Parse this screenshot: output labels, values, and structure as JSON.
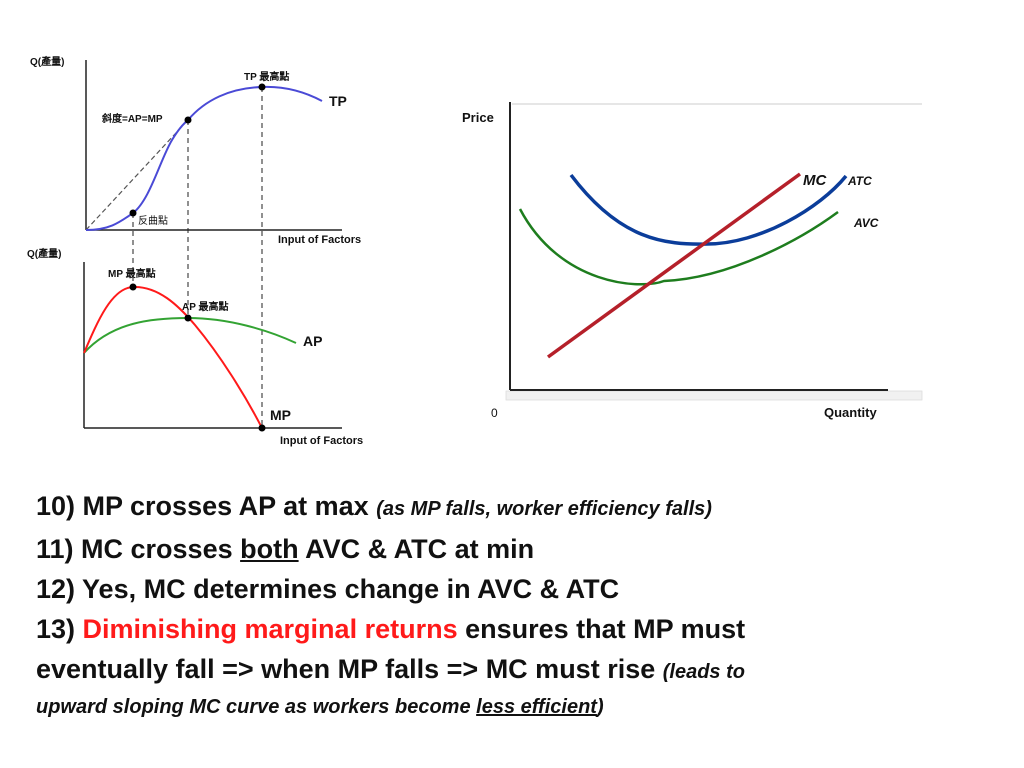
{
  "left_top": {
    "y_label": "Q(產量)",
    "x_label": "Input of Factors",
    "tp_label": "TP",
    "tp_max_label": "TP 最高點",
    "slope_label": "斜度=AP=MP",
    "inflection_label": "反曲點"
  },
  "left_bottom": {
    "y_label": "Q(產量)",
    "x_label": "Input of Factors",
    "mp_max_label": "MP 最高點",
    "ap_max_label": "AP 最高點",
    "ap_label": "AP",
    "mp_label": "MP"
  },
  "right": {
    "y_label": "Price",
    "x_label": "Quantity",
    "origin_label": "0",
    "mc_label": "MC",
    "atc_label": "ATC",
    "avc_label": "AVC"
  },
  "colors": {
    "tp": "#4a4ad6",
    "mp": "#ff1a1a",
    "ap": "#33a333",
    "mc": "#b5202a",
    "atc": "#0b3d9a",
    "avc": "#1e7d1e"
  },
  "notes": {
    "l1_main": "10) MP crosses AP at max",
    "l1_small": "(as MP falls, worker efficiency falls)",
    "l2_a": "11) MC crosses ",
    "l2_u": "both",
    "l2_b": " AVC & ATC at min",
    "l3": "12) Yes, MC determines change in AVC & ATC",
    "l4_a": "13) ",
    "l4_red": "Diminishing marginal returns",
    "l4_b": " ensures that MP must",
    "l5_a": "eventually fall =>  when MP falls => MC must rise ",
    "l5_small": "(leads to",
    "l6_a": "upward sloping MC curve as workers become ",
    "l6_u": "less efficient",
    "l6_b": ")"
  }
}
